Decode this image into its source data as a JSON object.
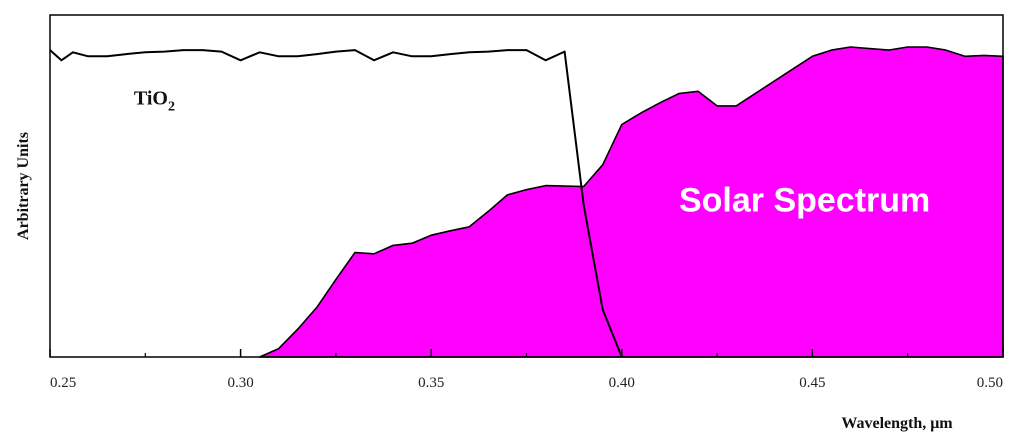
{
  "chart_data": {
    "type": "area",
    "xlabel": "Wavelength, μm",
    "ylabel": "Arbitrary Units",
    "xlim": [
      0.25,
      0.5
    ],
    "ylim": [
      0,
      1
    ],
    "x_ticks": [
      "0.25",
      "0.30",
      "0.35",
      "0.40",
      "0.45",
      "0.50"
    ],
    "grid": false,
    "colors": {
      "solar_fill": "#ff00ff",
      "tio2_line": "#000000",
      "frame": "#000000"
    },
    "annotations": [
      {
        "id": "tio2",
        "text": "TiO",
        "subscript": "2",
        "x": 0.272,
        "y": 0.815
      },
      {
        "id": "solar",
        "text": "Solar Spectrum",
        "x": 0.415,
        "y": 0.47
      }
    ],
    "series": [
      {
        "type": "line",
        "x": [
          0.25,
          0.253,
          0.256,
          0.26,
          0.265,
          0.27,
          0.275,
          0.28,
          0.285,
          0.29,
          0.295,
          0.3,
          0.305,
          0.31,
          0.315,
          0.32,
          0.325,
          0.33,
          0.335,
          0.34,
          0.345,
          0.35,
          0.355,
          0.36,
          0.365,
          0.37,
          0.375,
          0.38,
          0.385,
          0.39,
          0.395,
          0.4
        ],
        "y": [
          0.99,
          0.957,
          0.983,
          0.97,
          0.97,
          0.977,
          0.983,
          0.985,
          0.99,
          0.99,
          0.985,
          0.957,
          0.983,
          0.97,
          0.97,
          0.977,
          0.985,
          0.99,
          0.957,
          0.983,
          0.97,
          0.97,
          0.977,
          0.983,
          0.985,
          0.99,
          0.99,
          0.957,
          0.985,
          0.49,
          0.153,
          0
        ]
      },
      {
        "type": "area",
        "x": [
          0.305,
          0.31,
          0.315,
          0.32,
          0.325,
          0.33,
          0.335,
          0.34,
          0.345,
          0.35,
          0.355,
          0.36,
          0.365,
          0.37,
          0.375,
          0.38,
          0.39,
          0.395,
          0.4,
          0.405,
          0.41,
          0.415,
          0.42,
          0.425,
          0.43,
          0.44,
          0.45,
          0.455,
          0.46,
          0.465,
          0.47,
          0.475,
          0.48,
          0.485,
          0.49,
          0.495,
          0.5
        ],
        "y": [
          0,
          0.027,
          0.09,
          0.16,
          0.25,
          0.337,
          0.333,
          0.36,
          0.367,
          0.393,
          0.407,
          0.42,
          0.47,
          0.523,
          0.54,
          0.553,
          0.55,
          0.62,
          0.75,
          0.787,
          0.82,
          0.85,
          0.857,
          0.81,
          0.81,
          0.89,
          0.97,
          0.99,
          1,
          0.995,
          0.99,
          1,
          1,
          0.99,
          0.97,
          0.973,
          0.97
        ]
      }
    ]
  }
}
